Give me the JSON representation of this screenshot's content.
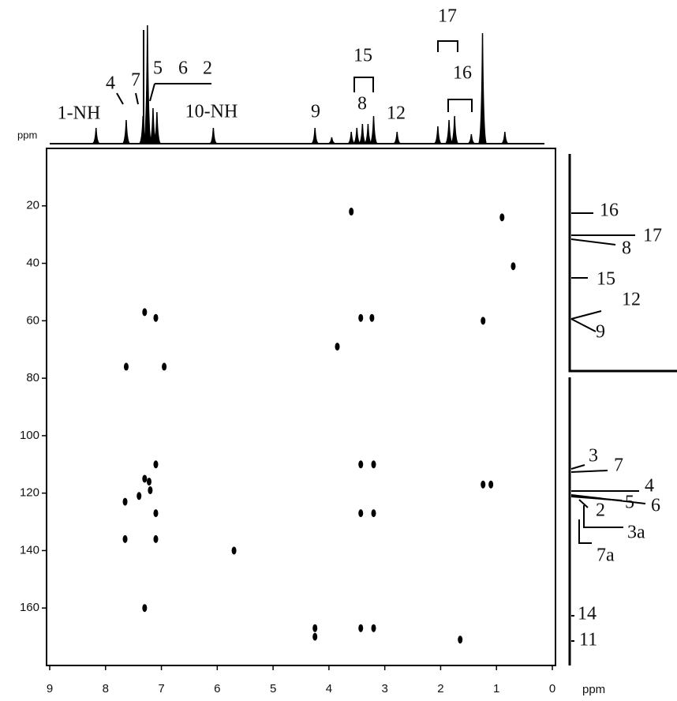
{
  "chart_data": {
    "type": "scatter",
    "x_label": "ppm",
    "top_axis_label": "ppm",
    "xlim": [
      9,
      0
    ],
    "ylim": [
      0,
      180
    ],
    "xticks": [
      9,
      8,
      7,
      6,
      5,
      4,
      3,
      2,
      1,
      0
    ],
    "yticks": [
      20,
      40,
      60,
      80,
      100,
      120,
      140,
      160
    ],
    "color": "#000000",
    "x": [
      7.63,
      6.95,
      7.3,
      7.1,
      3.43,
      3.23,
      1.24,
      3.85,
      3.6,
      0.9,
      0.7,
      7.1,
      3.43,
      3.2,
      7.3,
      7.22,
      1.24,
      1.1,
      7.65,
      7.4,
      7.2,
      7.1,
      3.43,
      3.2,
      7.65,
      7.1,
      5.7,
      7.3,
      3.43,
      3.2,
      4.25,
      4.25,
      1.65
    ],
    "y": [
      76,
      76,
      57,
      59,
      59,
      59,
      60,
      69,
      22,
      24,
      41,
      110,
      110,
      110,
      115,
      116,
      117,
      117,
      123,
      121,
      119,
      127,
      127,
      127,
      136,
      136,
      140,
      160,
      167,
      167,
      167,
      170,
      171
    ],
    "proton_spectrum": {
      "x": [
        8.17,
        7.63,
        7.33,
        7.25,
        7.15,
        7.08,
        6.07,
        4.25,
        3.95,
        3.6,
        3.5,
        3.4,
        3.3,
        3.2,
        2.78,
        2.05,
        1.85,
        1.75,
        1.45,
        1.25,
        0.85
      ],
      "heights": [
        20,
        30,
        35,
        150,
        45,
        40,
        20,
        20,
        8,
        15,
        20,
        25,
        25,
        35,
        15,
        22,
        30,
        35,
        12,
        140,
        15
      ]
    },
    "proton_labels": [
      "1-NH",
      "4",
      "7",
      "5",
      "6",
      "2",
      "10-NH",
      "9",
      "15",
      "8",
      "12",
      "17",
      "16"
    ],
    "carbon_labels": [
      "16",
      "17",
      "8",
      "15",
      "12",
      "9",
      "3",
      "7",
      "4",
      "6",
      "5",
      "2",
      "3a",
      "7a",
      "14",
      "11"
    ]
  }
}
